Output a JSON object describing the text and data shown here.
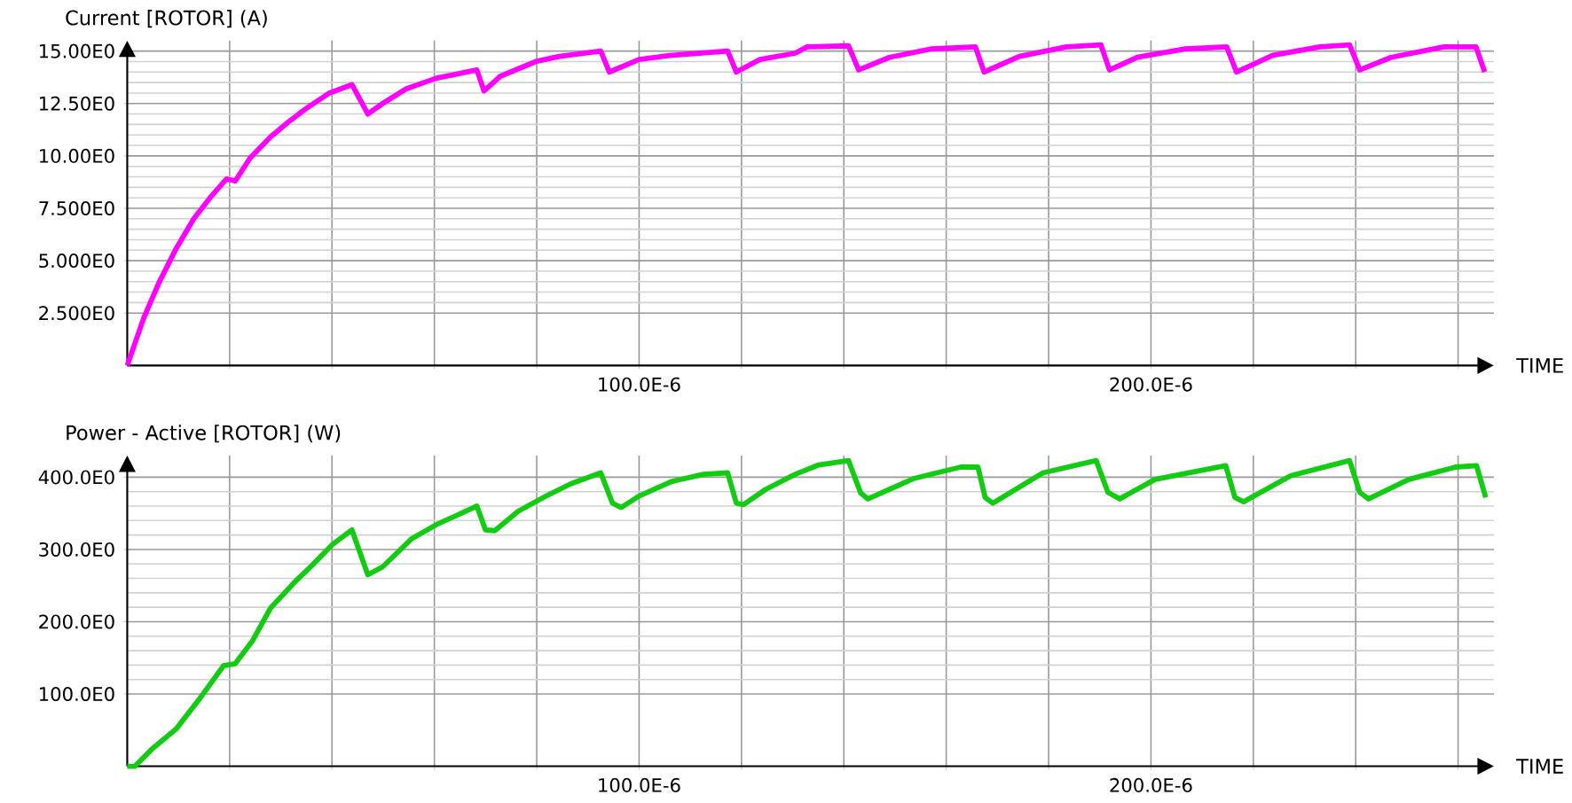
{
  "chart_data": [
    {
      "type": "line",
      "ylabel": "Current [ROTOR] (A)",
      "xlabel": "TIME",
      "color": "#ff00ff",
      "grid": true,
      "x": [
        0,
        3.2e-06,
        6.1e-06,
        9.6e-06,
        1.3e-05,
        1.65e-05,
        1.94e-05,
        2.11e-05,
        2.4e-05,
        2.8e-05,
        3.14e-05,
        3.49e-05,
        3.95e-05,
        4.39e-05,
        4.7e-05,
        4.99e-05,
        5.45e-05,
        6.03e-05,
        6.83e-05,
        6.97e-05,
        7.29e-05,
        7.98e-05,
        8.44e-05,
        9.25e-05,
        9.42e-05,
        0.0001,
        0.0001063,
        0.0001173,
        0.000119,
        0.0001236,
        0.0001305,
        0.0001328,
        0.0001409,
        0.0001429,
        0.0001489,
        0.000157,
        0.0001657,
        0.0001674,
        0.0001743,
        0.0001835,
        0.0001902,
        0.0001919,
        0.0001973,
        0.0002065,
        0.0002148,
        0.0002167,
        0.0002238,
        0.000233,
        0.0002388,
        0.0002408,
        0.0002469,
        0.0002572,
        0.0002635,
        0.0002652
      ],
      "values": [
        0,
        2.25,
        3.9,
        5.6,
        7.0,
        8.1,
        8.9,
        8.8,
        9.9,
        10.9,
        11.6,
        12.25,
        13.0,
        13.4,
        12.0,
        12.5,
        13.2,
        13.7,
        14.1,
        13.1,
        13.8,
        14.5,
        14.75,
        15.0,
        14.0,
        14.6,
        14.8,
        15.0,
        14.0,
        14.6,
        14.9,
        15.2,
        15.25,
        14.1,
        14.7,
        15.1,
        15.2,
        14.0,
        14.75,
        15.2,
        15.3,
        14.1,
        14.7,
        15.1,
        15.2,
        14.0,
        14.8,
        15.2,
        15.3,
        14.1,
        14.7,
        15.2,
        15.2,
        14.0
      ],
      "xlim": [
        0,
        0.000267
      ],
      "ylim": [
        0,
        15.5
      ],
      "xticks": [
        {
          "value": 2e-05,
          "label": null
        },
        {
          "value": 4e-05,
          "label": null
        },
        {
          "value": 6e-05,
          "label": null
        },
        {
          "value": 8e-05,
          "label": null
        },
        {
          "value": 0.0001,
          "label": "100.0E-6"
        },
        {
          "value": 0.00012,
          "label": null
        },
        {
          "value": 0.00014,
          "label": null
        },
        {
          "value": 0.00016,
          "label": null
        },
        {
          "value": 0.00018,
          "label": null
        },
        {
          "value": 0.0002,
          "label": "200.0E-6"
        },
        {
          "value": 0.00022,
          "label": null
        },
        {
          "value": 0.00024,
          "label": null
        },
        {
          "value": 0.00026,
          "label": null
        }
      ],
      "yticks": [
        {
          "value": 2.5,
          "label": "2.500E0"
        },
        {
          "value": 5,
          "label": "5.000E0"
        },
        {
          "value": 7.5,
          "label": "7.500E0"
        },
        {
          "value": 10,
          "label": "10.00E0"
        },
        {
          "value": 12.5,
          "label": "12.50E0"
        },
        {
          "value": 15,
          "label": "15.00E0"
        }
      ]
    },
    {
      "type": "line",
      "ylabel": "Power - Active [ROTOR] (W)",
      "xlabel": "TIME",
      "color": "#11cc11",
      "grid": true,
      "x": [
        0,
        1.5e-06,
        5e-06,
        9.6e-06,
        1.42e-05,
        1.88e-05,
        2.11e-05,
        2.45e-05,
        2.8e-05,
        3.26e-05,
        3.61e-05,
        4.01e-05,
        4.39e-05,
        4.7e-05,
        4.99e-05,
        5.56e-05,
        6.03e-05,
        6.83e-05,
        7e-05,
        7.18e-05,
        7.64e-05,
        8.21e-05,
        8.67e-05,
        9.25e-05,
        9.48e-05,
        9.65e-05,
        0.0001,
        0.0001063,
        0.0001126,
        0.0001173,
        0.000119,
        0.0001204,
        0.0001247,
        0.0001305,
        0.0001351,
        0.0001409,
        0.0001433,
        0.0001447,
        0.0001536,
        0.0001628,
        0.0001662,
        0.0001676,
        0.0001691,
        0.0001789,
        0.0001893,
        0.0001916,
        0.0001939,
        0.0002008,
        0.0002146,
        0.0002164,
        0.0002181,
        0.0002273,
        0.0002388,
        0.0002408,
        0.0002425,
        0.0002504,
        0.0002595,
        0.0002636,
        0.0002654
      ],
      "values": [
        0,
        0,
        25,
        52,
        94,
        139,
        142,
        174,
        219,
        254,
        278,
        307,
        327,
        265,
        276,
        315,
        334,
        360,
        327,
        326,
        353,
        375,
        391,
        406,
        364,
        358,
        374,
        394,
        404,
        406,
        364,
        362,
        383,
        404,
        417,
        423,
        378,
        370,
        398,
        414,
        414,
        372,
        364,
        406,
        423,
        379,
        370,
        397,
        416,
        372,
        366,
        402,
        423,
        379,
        370,
        397,
        414,
        416,
        372
      ],
      "xlim": [
        0,
        0.000267
      ],
      "ylim": [
        0,
        430
      ],
      "xticks": [
        {
          "value": 2e-05,
          "label": null
        },
        {
          "value": 4e-05,
          "label": null
        },
        {
          "value": 6e-05,
          "label": null
        },
        {
          "value": 8e-05,
          "label": null
        },
        {
          "value": 0.0001,
          "label": "100.0E-6"
        },
        {
          "value": 0.00012,
          "label": null
        },
        {
          "value": 0.00014,
          "label": null
        },
        {
          "value": 0.00016,
          "label": null
        },
        {
          "value": 0.00018,
          "label": null
        },
        {
          "value": 0.0002,
          "label": "200.0E-6"
        },
        {
          "value": 0.00022,
          "label": null
        },
        {
          "value": 0.00024,
          "label": null
        },
        {
          "value": 0.00026,
          "label": null
        }
      ],
      "yticks": [
        {
          "value": 100,
          "label": "100.0E0"
        },
        {
          "value": 200,
          "label": "200.0E0"
        },
        {
          "value": 300,
          "label": "300.0E0"
        },
        {
          "value": 400,
          "label": "400.0E0"
        }
      ]
    }
  ]
}
